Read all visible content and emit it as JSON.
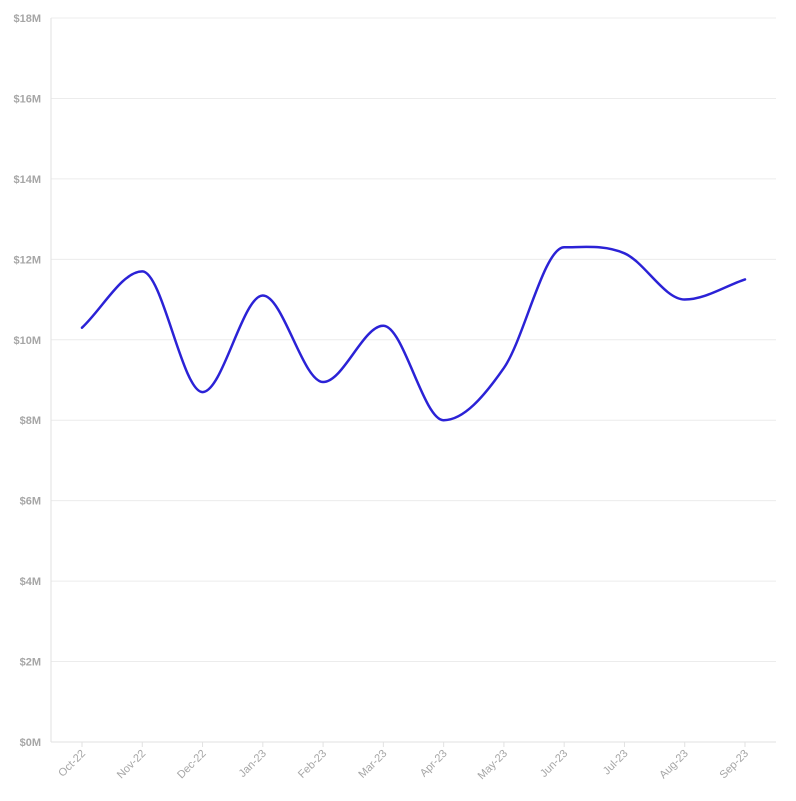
{
  "chart_data": {
    "type": "line",
    "title": "",
    "xlabel": "",
    "ylabel": "",
    "categories": [
      "Oct-22",
      "Nov-22",
      "Dec-22",
      "Jan-23",
      "Feb-23",
      "Mar-23",
      "Apr-23",
      "May-23",
      "Jun-23",
      "Jul-23",
      "Aug-23",
      "Sep-23"
    ],
    "series": [
      {
        "values": [
          10.3,
          11.7,
          8.7,
          11.1,
          8.95,
          10.35,
          8.0,
          9.3,
          12.3,
          12.15,
          11.0,
          11.5
        ]
      }
    ],
    "ylim": [
      0,
      18
    ],
    "y_ticks": [
      0,
      2,
      4,
      6,
      8,
      10,
      12,
      14,
      16,
      18
    ],
    "y_tick_labels": [
      "$0M",
      "$2M",
      "$4M",
      "$6M",
      "$8M",
      "$10M",
      "$12M",
      "$14M",
      "$16M",
      "$18M"
    ],
    "grid": true,
    "legend": "none",
    "line_color": "#2b22d6"
  }
}
